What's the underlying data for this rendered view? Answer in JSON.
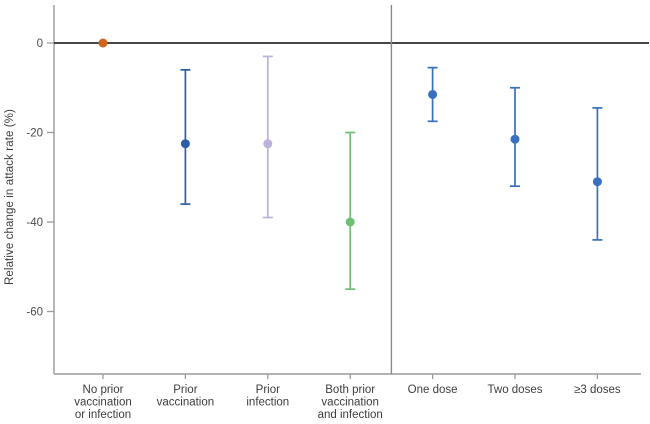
{
  "chart_data": {
    "type": "scatter",
    "subtype": "point-estimates-with-error-bars",
    "title": "",
    "xlabel": "",
    "ylabel": "Relative change in attack rate (%)",
    "yticks": [
      0,
      -20,
      -40,
      -60
    ],
    "ylim": [
      8.5,
      -74
    ],
    "grid": false,
    "legend": false,
    "zero_reference_line": true,
    "group_separator_after_index": 3,
    "groups": [
      {
        "points": [
          {
            "category": "No prior vaccination or infection",
            "label_lines": [
              "No prior",
              "vaccination",
              "or infection"
            ],
            "value": 0,
            "ci_low": null,
            "ci_high": null,
            "color": "#d2651d"
          },
          {
            "category": "Prior vaccination",
            "label_lines": [
              "Prior",
              "vaccination"
            ],
            "value": -22.5,
            "ci_low": -36,
            "ci_high": -6,
            "color": "#2e5ca6"
          },
          {
            "category": "Prior infection",
            "label_lines": [
              "Prior",
              "infection"
            ],
            "value": -22.5,
            "ci_low": -39,
            "ci_high": -3,
            "color": "#bcb1da"
          },
          {
            "category": "Both prior vaccination and infection",
            "label_lines": [
              "Both prior",
              "vaccination",
              "and infection"
            ],
            "value": -40,
            "ci_low": -55,
            "ci_high": -20,
            "color": "#6fbf74"
          }
        ]
      },
      {
        "points": [
          {
            "category": "One dose",
            "label_lines": [
              "One dose"
            ],
            "value": -11.5,
            "ci_low": -17.5,
            "ci_high": -5.5,
            "color": "#3a6fbf"
          },
          {
            "category": "Two doses",
            "label_lines": [
              "Two doses"
            ],
            "value": -21.5,
            "ci_low": -32,
            "ci_high": -10,
            "color": "#3a6fbf"
          },
          {
            "category": "≥3 doses",
            "label_lines": [
              "≥3 doses"
            ],
            "value": -31,
            "ci_low": -44,
            "ci_high": -14.5,
            "color": "#3a6fbf"
          }
        ]
      }
    ]
  },
  "colors": {
    "axis": "#9a9a9a",
    "zero_line": "#2b2b2b",
    "separator": "#8a8a8a",
    "tick_label": "#4d4d4d",
    "category_label": "#3d3d3d",
    "background": "#ffffff"
  }
}
